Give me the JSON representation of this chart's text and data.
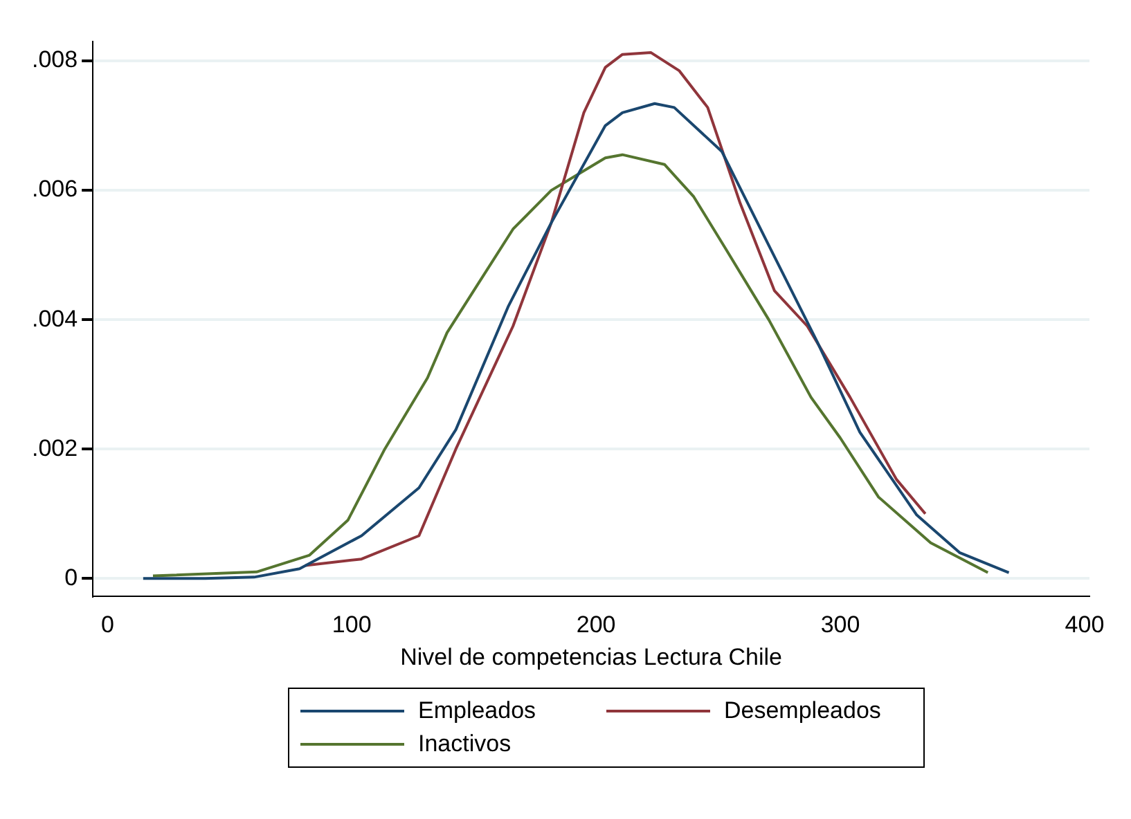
{
  "chart_data": {
    "type": "line",
    "xlabel": "Nivel de competencias Lectura Chile",
    "xlim": [
      -6,
      402
    ],
    "xticks": [
      0,
      100,
      200,
      300,
      400
    ],
    "ylim": [
      -0.00028,
      0.0083
    ],
    "yticks": [
      0,
      {
        "value": 0.002,
        "label": ".002"
      },
      {
        "value": 0.004,
        "label": ".004"
      },
      {
        "value": 0.006,
        "label": ".006"
      },
      {
        "value": 0.008,
        "label": ".008"
      }
    ],
    "grid": "y",
    "legend": "bottom",
    "marker": "none",
    "line_style": "solid",
    "series": [
      {
        "name": "Empleados",
        "color": "#1a476f",
        "x": [
          14.6,
          40,
          60,
          78.6,
          104,
          127.5,
          142.6,
          164,
          181.7,
          203.8,
          210.8,
          224,
          232,
          251.5,
          270.7,
          290.5,
          308,
          331.3,
          348.8,
          369
        ],
        "values": [
          0,
          0,
          2e-05,
          0.00015,
          0.00066,
          0.0014,
          0.0023,
          0.0042,
          0.0055,
          0.007,
          0.0072,
          0.00734,
          0.00728,
          0.0066,
          0.00515,
          0.00366,
          0.00226,
          0.00098,
          0.0004,
          9e-05
        ]
      },
      {
        "name": "Desempleados",
        "color": "#90353b",
        "x": [
          81,
          104,
          127.5,
          142.6,
          166,
          181.7,
          195,
          203.8,
          210.8,
          222.4,
          234,
          245.7,
          259,
          273,
          286.5,
          304,
          323,
          334.8
        ],
        "values": [
          0.0002,
          0.0003,
          0.00066,
          0.002,
          0.0039,
          0.0055,
          0.0072,
          0.0079,
          0.0081,
          0.00813,
          0.00785,
          0.00728,
          0.0058,
          0.00445,
          0.0039,
          0.0028,
          0.00153,
          0.001
        ]
      },
      {
        "name": "Inactivos",
        "color": "#55752f",
        "x": [
          18.6,
          61,
          82.7,
          98.4,
          113.5,
          131,
          139,
          150.8,
          166,
          181.7,
          203.8,
          210.8,
          228,
          240,
          253,
          270.7,
          288,
          300,
          315.6,
          337,
          360.4
        ],
        "values": [
          4e-05,
          0.0001,
          0.00036,
          0.0009,
          0.002,
          0.0031,
          0.0038,
          0.0045,
          0.0054,
          0.006,
          0.0065,
          0.00655,
          0.0064,
          0.0059,
          0.0051,
          0.004,
          0.0028,
          0.00217,
          0.00126,
          0.00055,
          9e-05
        ]
      }
    ]
  }
}
